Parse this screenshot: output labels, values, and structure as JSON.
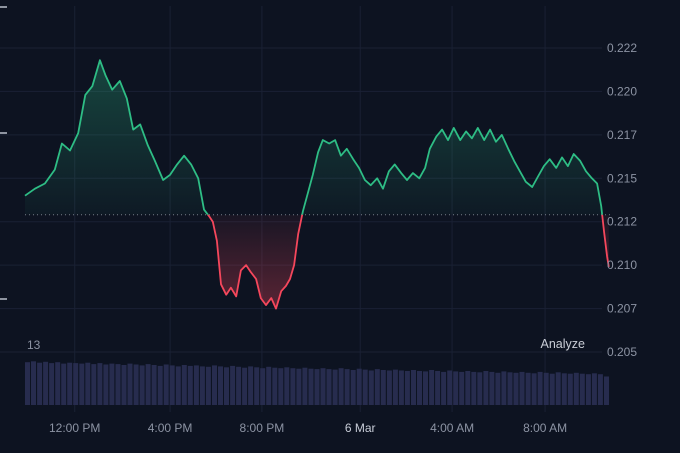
{
  "overlays": {
    "left_label": "13",
    "analyze_label": "Analyze"
  },
  "chart_data": {
    "type": "area",
    "style": "baseline",
    "title": "",
    "baseline_value": 0.2129,
    "ylim": [
      0.205,
      0.2225
    ],
    "grid": true,
    "legend": false,
    "y_axis": {
      "side": "right",
      "ticks": [
        {
          "label": "0.222",
          "value": 0.2225
        },
        {
          "label": "0.220",
          "value": 0.22
        },
        {
          "label": "0.217",
          "value": 0.2175
        },
        {
          "label": "0.215",
          "value": 0.215
        },
        {
          "label": "0.212",
          "value": 0.2125
        },
        {
          "label": "0.210",
          "value": 0.21
        },
        {
          "label": "0.207",
          "value": 0.2075
        },
        {
          "label": "0.205",
          "value": 0.205
        }
      ]
    },
    "x_axis": {
      "side": "bottom",
      "ticks": [
        {
          "label": "12:00 PM",
          "pos": 0.085
        },
        {
          "label": "4:00 PM",
          "pos": 0.248
        },
        {
          "label": "8:00 PM",
          "pos": 0.405
        },
        {
          "label": "6 Mar",
          "pos": 0.573,
          "strong": true
        },
        {
          "label": "4:00 AM",
          "pos": 0.73
        },
        {
          "label": "8:00 AM",
          "pos": 0.889
        }
      ]
    },
    "series": [
      {
        "name": "price",
        "points": [
          [
            0.0,
            0.214
          ],
          [
            0.017,
            0.2144
          ],
          [
            0.034,
            0.2147
          ],
          [
            0.051,
            0.2155
          ],
          [
            0.063,
            0.217
          ],
          [
            0.077,
            0.2166
          ],
          [
            0.091,
            0.2176
          ],
          [
            0.103,
            0.2198
          ],
          [
            0.115,
            0.2203
          ],
          [
            0.128,
            0.2218
          ],
          [
            0.138,
            0.2209
          ],
          [
            0.149,
            0.2201
          ],
          [
            0.162,
            0.2206
          ],
          [
            0.174,
            0.2196
          ],
          [
            0.185,
            0.2178
          ],
          [
            0.197,
            0.2181
          ],
          [
            0.21,
            0.2169
          ],
          [
            0.222,
            0.216
          ],
          [
            0.236,
            0.2149
          ],
          [
            0.248,
            0.2152
          ],
          [
            0.26,
            0.2158
          ],
          [
            0.272,
            0.2163
          ],
          [
            0.284,
            0.2158
          ],
          [
            0.296,
            0.215
          ],
          [
            0.306,
            0.2132
          ],
          [
            0.315,
            0.2128
          ],
          [
            0.321,
            0.2125
          ],
          [
            0.328,
            0.2114
          ],
          [
            0.335,
            0.2089
          ],
          [
            0.344,
            0.2083
          ],
          [
            0.352,
            0.2087
          ],
          [
            0.361,
            0.2082
          ],
          [
            0.369,
            0.2097
          ],
          [
            0.378,
            0.21
          ],
          [
            0.386,
            0.2096
          ],
          [
            0.395,
            0.2092
          ],
          [
            0.403,
            0.2081
          ],
          [
            0.412,
            0.2077
          ],
          [
            0.421,
            0.2081
          ],
          [
            0.429,
            0.2075
          ],
          [
            0.438,
            0.2085
          ],
          [
            0.446,
            0.2088
          ],
          [
            0.453,
            0.2092
          ],
          [
            0.46,
            0.21
          ],
          [
            0.467,
            0.2118
          ],
          [
            0.475,
            0.2131
          ],
          [
            0.484,
            0.2142
          ],
          [
            0.492,
            0.2152
          ],
          [
            0.501,
            0.2165
          ],
          [
            0.509,
            0.2172
          ],
          [
            0.52,
            0.217
          ],
          [
            0.53,
            0.2172
          ],
          [
            0.54,
            0.2163
          ],
          [
            0.55,
            0.2167
          ],
          [
            0.561,
            0.2161
          ],
          [
            0.571,
            0.2156
          ],
          [
            0.581,
            0.2149
          ],
          [
            0.591,
            0.2146
          ],
          [
            0.602,
            0.215
          ],
          [
            0.612,
            0.2144
          ],
          [
            0.622,
            0.2154
          ],
          [
            0.632,
            0.2158
          ],
          [
            0.643,
            0.2153
          ],
          [
            0.653,
            0.2149
          ],
          [
            0.663,
            0.2153
          ],
          [
            0.674,
            0.215
          ],
          [
            0.684,
            0.2156
          ],
          [
            0.692,
            0.2167
          ],
          [
            0.703,
            0.2174
          ],
          [
            0.713,
            0.2178
          ],
          [
            0.723,
            0.2172
          ],
          [
            0.733,
            0.2179
          ],
          [
            0.744,
            0.2172
          ],
          [
            0.754,
            0.2177
          ],
          [
            0.764,
            0.2173
          ],
          [
            0.774,
            0.2179
          ],
          [
            0.785,
            0.2172
          ],
          [
            0.795,
            0.2178
          ],
          [
            0.805,
            0.2171
          ],
          [
            0.815,
            0.2175
          ],
          [
            0.826,
            0.2167
          ],
          [
            0.836,
            0.216
          ],
          [
            0.846,
            0.2154
          ],
          [
            0.856,
            0.2148
          ],
          [
            0.867,
            0.2145
          ],
          [
            0.877,
            0.2151
          ],
          [
            0.887,
            0.2157
          ],
          [
            0.897,
            0.2161
          ],
          [
            0.908,
            0.2156
          ],
          [
            0.918,
            0.2162
          ],
          [
            0.928,
            0.2157
          ],
          [
            0.938,
            0.2164
          ],
          [
            0.949,
            0.216
          ],
          [
            0.959,
            0.2154
          ],
          [
            0.969,
            0.215
          ],
          [
            0.978,
            0.2147
          ],
          [
            0.985,
            0.2134
          ],
          [
            0.99,
            0.2119
          ],
          [
            0.995,
            0.2105
          ],
          [
            0.998,
            0.2099
          ]
        ]
      }
    ],
    "volume": {
      "values": [
        0.93,
        0.95,
        0.92,
        0.94,
        0.91,
        0.93,
        0.9,
        0.92,
        0.91,
        0.9,
        0.92,
        0.89,
        0.91,
        0.88,
        0.9,
        0.89,
        0.87,
        0.9,
        0.88,
        0.86,
        0.89,
        0.87,
        0.85,
        0.88,
        0.86,
        0.84,
        0.87,
        0.85,
        0.86,
        0.84,
        0.83,
        0.86,
        0.84,
        0.82,
        0.85,
        0.83,
        0.81,
        0.84,
        0.82,
        0.8,
        0.83,
        0.81,
        0.8,
        0.82,
        0.8,
        0.79,
        0.81,
        0.79,
        0.78,
        0.8,
        0.78,
        0.77,
        0.8,
        0.78,
        0.76,
        0.79,
        0.77,
        0.75,
        0.78,
        0.76,
        0.75,
        0.77,
        0.75,
        0.74,
        0.76,
        0.74,
        0.73,
        0.76,
        0.74,
        0.72,
        0.75,
        0.73,
        0.72,
        0.74,
        0.72,
        0.71,
        0.74,
        0.72,
        0.7,
        0.73,
        0.71,
        0.7,
        0.72,
        0.7,
        0.69,
        0.72,
        0.7,
        0.68,
        0.71,
        0.69,
        0.68,
        0.7,
        0.68,
        0.67,
        0.69,
        0.67,
        0.62
      ]
    },
    "colors": {
      "background": "#0d1321",
      "up": "#2ebd85",
      "down": "#f5475c",
      "volume_bar": "#272c4e",
      "grid": "#1a2134",
      "axis_text": "#8c93a3",
      "axis_text_strong": "#c8cdd8",
      "baseline_dots": "#aeb4bf"
    }
  }
}
